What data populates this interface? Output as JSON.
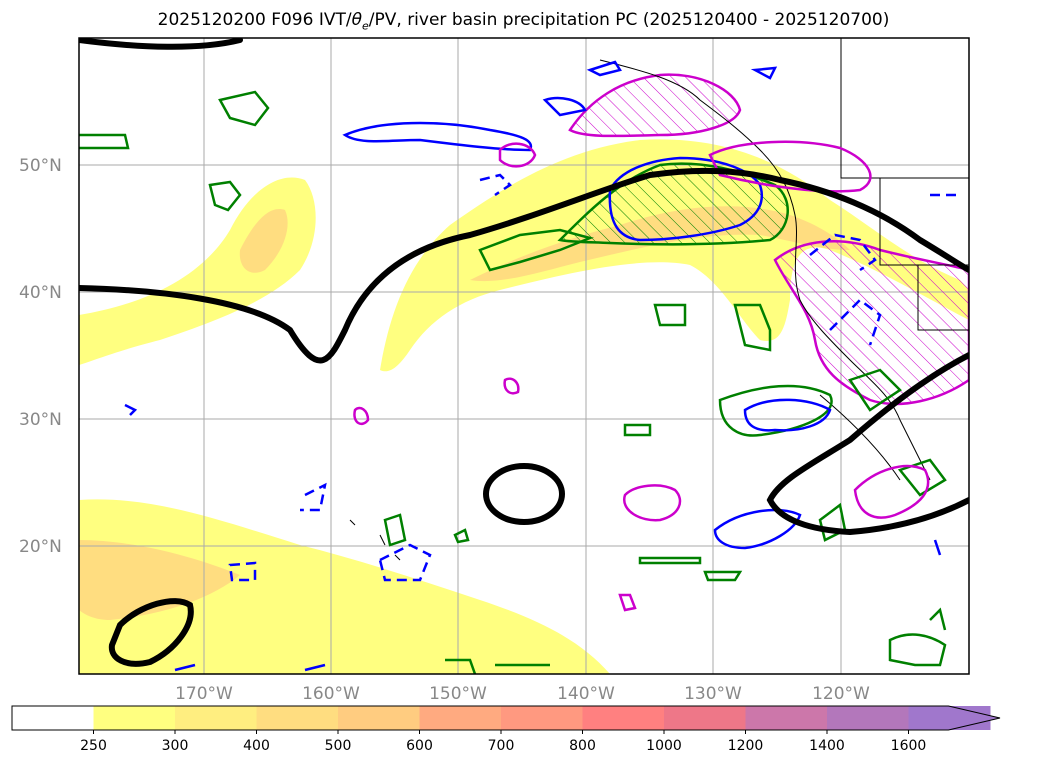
{
  "title": "2025120200 F096 IVT/",
  "title_theta": "θ",
  "title_sub": "e",
  "title_rest": "/PV, river basin precipitation PC (2025120400 - 2025120700)",
  "lat_labels": [
    "50°N",
    "40°N",
    "30°N",
    "20°N"
  ],
  "lon_labels": [
    "170°W",
    "160°W",
    "150°W",
    "140°W",
    "130°W",
    "120°W"
  ],
  "colorbar": {
    "ticks": [
      "250",
      "300",
      "400",
      "500",
      "600",
      "700",
      "800",
      "1000",
      "1200",
      "1400",
      "1600"
    ],
    "colors": [
      "#ffffff",
      "#ffff80",
      "#ffee80",
      "#ffdd80",
      "#ffcc80",
      "#ffaa80",
      "#ff9980",
      "#ff8080",
      "#ee7788",
      "#cc77aa",
      "#b377bb",
      "#a077cc"
    ],
    "extend": "max"
  },
  "colors": {
    "ivt_low": "#ffff80",
    "ivt_mid": "#ffdd80",
    "ivt_high": "#ffcc70",
    "pv_contour": "#000000",
    "green_contour": "#008000",
    "blue_contour": "#0000ff",
    "magenta_contour": "#cc00cc",
    "grid": "#aaaaaa"
  }
}
